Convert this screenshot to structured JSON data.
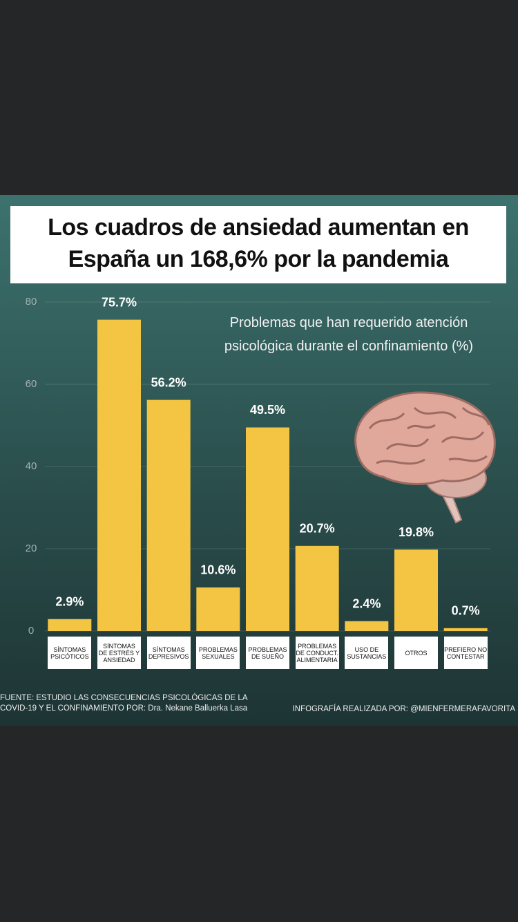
{
  "chart_data": {
    "type": "bar",
    "title": "Los cuadros de ansiedad aumentan en\nEspaña un 168,6% por la pandemia",
    "subtitle": "Problemas que han requerido atención\npsicológica durante el confinamiento (%)",
    "categories": [
      "SÍNTOMAS\nPSICÓTICOS",
      "SÍNTOMAS\nDE ESTRÉS Y\nANSIEDAD",
      "SÍNTOMAS\nDEPRESIVOS",
      "PROBLEMAS\nSEXUALES",
      "PROBLEMAS\nDE SUEÑO",
      "PROBLEMAS\nDE CONDUCT.\nALIMENTARIA",
      "USO DE\nSUSTANCIAS",
      "OTROS",
      "PREFIERO NO\nCONTESTAR"
    ],
    "values": [
      2.9,
      75.7,
      56.2,
      10.6,
      49.5,
      20.7,
      2.4,
      19.8,
      0.7
    ],
    "value_labels": [
      "2.9%",
      "75.7%",
      "56.2%",
      "10.6%",
      "49.5%",
      "20.7%",
      "2.4%",
      "19.8%",
      "0.7%"
    ],
    "color": "#f4c542",
    "ylim": [
      0,
      80
    ],
    "yticks": [
      0,
      20,
      40,
      60,
      80
    ],
    "grid": true,
    "source": "FUENTE: ESTUDIO LAS CONSECUENCIAS PSICOLÓGICAS DE LA\nCOVID-19 Y EL CONFINAMIENTO POR: Dra. Nekane Balluerka Lasa",
    "credit": "INFOGRAFÍA REALIZADA POR: @MIENFERMERAFAVORITA"
  }
}
